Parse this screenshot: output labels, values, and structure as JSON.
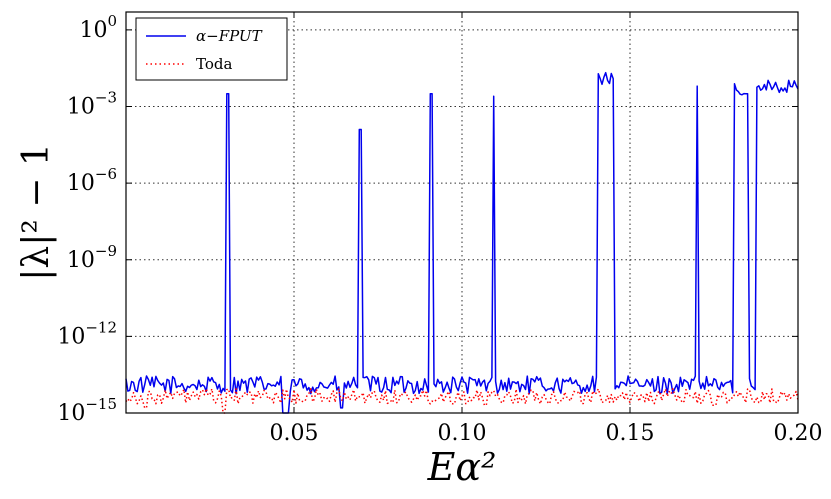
{
  "chart_data": {
    "type": "line",
    "title": "",
    "xlabel": "Eα²",
    "ylabel": "|λ|² − 1",
    "xscale": "linear",
    "yscale": "log",
    "xlim": [
      0.0,
      0.2
    ],
    "ylim_log10": [
      -15.0,
      0.7
    ],
    "grid": true,
    "legend_position": "top-left",
    "x_ticks": [
      {
        "value": 0.05,
        "label": "0.05"
      },
      {
        "value": 0.1,
        "label": "0.10"
      },
      {
        "value": 0.15,
        "label": "0.15"
      },
      {
        "value": 0.2,
        "label": "0.20"
      }
    ],
    "y_ticks": [
      {
        "exp": 0,
        "base": "10",
        "label": "0"
      },
      {
        "exp": -3,
        "base": "10",
        "label": "−3"
      },
      {
        "exp": -6,
        "base": "10",
        "label": "−6"
      },
      {
        "exp": -9,
        "base": "10",
        "label": "−9"
      },
      {
        "exp": -12,
        "base": "10",
        "label": "−12"
      },
      {
        "exp": -15,
        "base": "10",
        "label": "−15"
      }
    ],
    "series": [
      {
        "name": "α−FPUT",
        "style": "solid",
        "color": "#0000ee",
        "baseline_log10": -13.9,
        "noise_log10": 0.35,
        "spikes": [
          {
            "x": 0.0305,
            "log10_y": -2.5
          },
          {
            "x": 0.0697,
            "log10_y": -3.9
          },
          {
            "x": 0.091,
            "log10_y": -2.5
          },
          {
            "x": 0.1095,
            "log10_y": -2.6
          },
          {
            "x": 0.143,
            "log10_y": -1.9,
            "width": 0.0025
          },
          {
            "x": 0.17,
            "log10_y": -2.2
          },
          {
            "x": 0.183,
            "log10_y": -2.3,
            "width": 0.0022
          },
          {
            "x": 0.196,
            "log10_y": -2.2,
            "width": 0.0085
          }
        ],
        "dips": [
          {
            "x": 0.0468,
            "log10_y": -15.0
          },
          {
            "x": 0.048,
            "log10_y": -15.0
          },
          {
            "x": 0.064,
            "log10_y": -14.8
          }
        ]
      },
      {
        "name": "Toda",
        "style": "dotted",
        "color": "#ff0000",
        "baseline_log10": -14.35,
        "noise_log10": 0.3,
        "dips": [
          {
            "x": 0.006,
            "log10_y": -14.8
          },
          {
            "x": 0.029,
            "log10_y": -15.0
          },
          {
            "x": 0.107,
            "log10_y": -14.7
          },
          {
            "x": 0.175,
            "log10_y": -14.7
          }
        ]
      }
    ]
  }
}
